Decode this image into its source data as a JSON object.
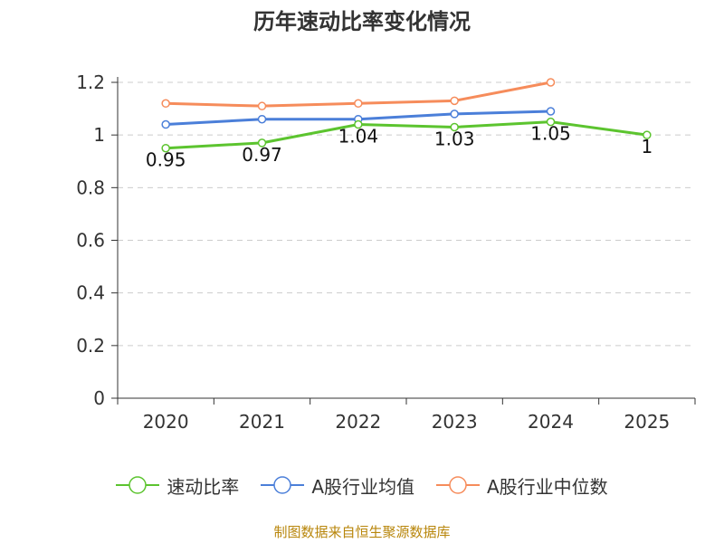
{
  "chart_data": {
    "type": "line",
    "title": "历年速动比率变化情况",
    "categories": [
      "2020",
      "2021",
      "2022",
      "2023",
      "2024",
      "2025"
    ],
    "ylim": [
      0,
      1.2
    ],
    "yticks": [
      "0",
      "0.2",
      "0.4",
      "0.6",
      "0.8",
      "1",
      "1.2"
    ],
    "series": [
      {
        "name": "速动比率",
        "color": "#5cc42f",
        "values": [
          0.95,
          0.97,
          1.04,
          1.03,
          1.05,
          1
        ],
        "labels": [
          "0.95",
          "0.97",
          "1.04",
          "1.03",
          "1.05",
          "1"
        ]
      },
      {
        "name": "A股行业均值",
        "color": "#4b7fd9",
        "values": [
          1.04,
          1.06,
          1.06,
          1.08,
          1.09,
          null
        ]
      },
      {
        "name": "A股行业中位数",
        "color": "#f68c5b",
        "values": [
          1.12,
          1.11,
          1.12,
          1.13,
          1.2,
          null
        ]
      }
    ],
    "grid": true,
    "legend_position": "bottom"
  },
  "footer": {
    "source": "制图数据来自恒生聚源数据库"
  }
}
